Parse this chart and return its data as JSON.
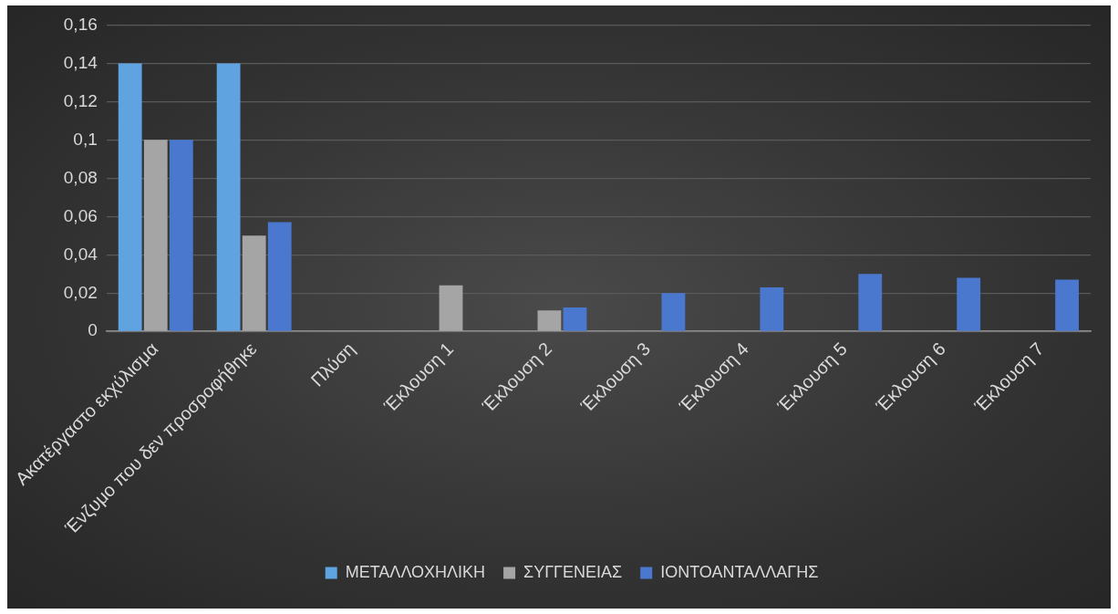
{
  "chart_data": {
    "type": "bar",
    "categories": [
      "Ακατέργαστο εκχύλισμα",
      "Ένζυμο που δεν προσροφήθηκε",
      "Πλύση",
      "Έκλουση 1",
      "Έκλουση 2",
      "Έκλουση 3",
      "Έκλουση 4",
      "Έκλουση 5",
      "Έκλουση 6",
      "Έκλουση 7"
    ],
    "series": [
      {
        "name": "ΜΕΤΑΛΛΟΧΗΛΙΚΗ",
        "color": "#5fa3e0",
        "values": [
          0.14,
          0.14,
          null,
          null,
          null,
          null,
          null,
          null,
          null,
          null
        ]
      },
      {
        "name": "ΣΥΓΓΕΝΕΙΑΣ",
        "color": "#a5a5a5",
        "values": [
          0.1,
          0.05,
          null,
          0.024,
          0.011,
          null,
          null,
          null,
          null,
          null
        ]
      },
      {
        "name": "ΙΟΝΤΟΑΝΤΑΛΛΑΓΗΣ",
        "color": "#4a78cf",
        "values": [
          0.1,
          0.057,
          null,
          null,
          0.0125,
          0.02,
          0.023,
          0.03,
          0.028,
          0.027
        ]
      }
    ],
    "ylim": [
      0,
      0.16
    ],
    "yticks": [
      0,
      {
        "value": 0.02,
        "label": "0,02"
      },
      {
        "value": 0.04,
        "label": "0,04"
      },
      {
        "value": 0.06,
        "label": "0,06"
      },
      {
        "value": 0.08,
        "label": "0,08"
      },
      {
        "value": 0.1,
        "label": "0,1"
      },
      {
        "value": 0.12,
        "label": "0,12"
      },
      {
        "value": 0.14,
        "label": "0,14"
      },
      {
        "value": 0.16,
        "label": "0,16"
      }
    ],
    "grid": "y",
    "legend": "bottom"
  }
}
